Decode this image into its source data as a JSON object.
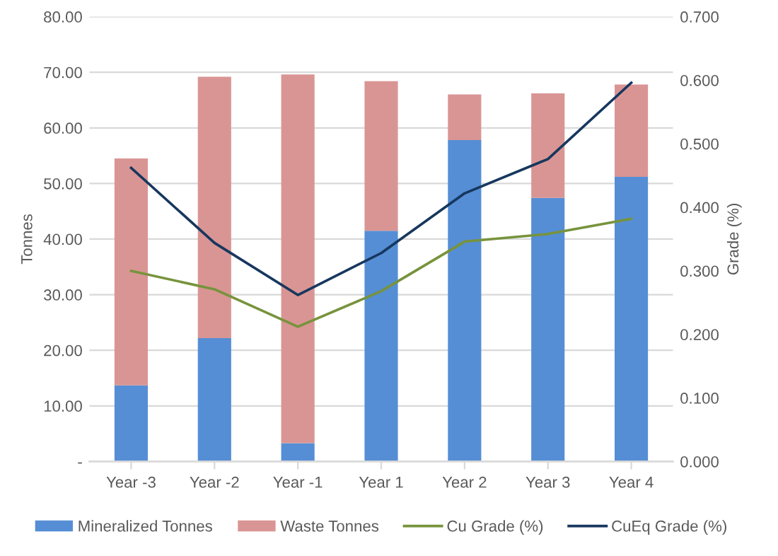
{
  "chart_data": {
    "type": "bar",
    "stacked": true,
    "ylabel": "Tonnes",
    "y2label": "Grade (%)",
    "categories": [
      "Year -3",
      "Year -2",
      "Year -1",
      "Year 1",
      "Year 2",
      "Year 3",
      "Year 4"
    ],
    "series": [
      {
        "name": "Mineralized Tonnes",
        "color": "#558ed5",
        "values": [
          13.7,
          22.2,
          3.3,
          41.5,
          57.8,
          47.4,
          51.2
        ]
      },
      {
        "name": "Waste Tonnes",
        "color": "#d99594",
        "values": [
          40.8,
          47.0,
          66.3,
          26.9,
          8.2,
          18.8,
          16.6
        ]
      },
      {
        "name": "Cu Grade (%)",
        "type": "line",
        "axis": "y2",
        "color": "#77933c",
        "values": [
          0.3,
          0.271,
          0.212,
          0.268,
          0.346,
          0.358,
          0.382
        ]
      },
      {
        "name": "CuEq Grade (%)",
        "type": "line",
        "axis": "y2",
        "color": "#17375e",
        "values": [
          0.462,
          0.344,
          0.262,
          0.328,
          0.422,
          0.476,
          0.596
        ]
      }
    ],
    "ylim": [
      0,
      80
    ],
    "yticks": [
      {
        "value": 0,
        "label": "-"
      },
      {
        "value": 10,
        "label": "10.00"
      },
      {
        "value": 20,
        "label": "20.00"
      },
      {
        "value": 30,
        "label": "30.00"
      },
      {
        "value": 40,
        "label": "40.00"
      },
      {
        "value": 50,
        "label": "50.00"
      },
      {
        "value": 60,
        "label": "60.00"
      },
      {
        "value": 70,
        "label": "70.00"
      },
      {
        "value": 80,
        "label": "80.00"
      }
    ],
    "y2lim": [
      0,
      0.7
    ],
    "y2ticks": [
      {
        "value": 0,
        "label": "0.000"
      },
      {
        "value": 0.1,
        "label": "0.100"
      },
      {
        "value": 0.2,
        "label": "0.200"
      },
      {
        "value": 0.3,
        "label": "0.300"
      },
      {
        "value": 0.4,
        "label": "0.400"
      },
      {
        "value": 0.5,
        "label": "0.500"
      },
      {
        "value": 0.6,
        "label": "0.600"
      },
      {
        "value": 0.7,
        "label": "0.700"
      }
    ],
    "grid": "y",
    "legend": "bottom",
    "marker": "none",
    "line_style": "solid"
  }
}
